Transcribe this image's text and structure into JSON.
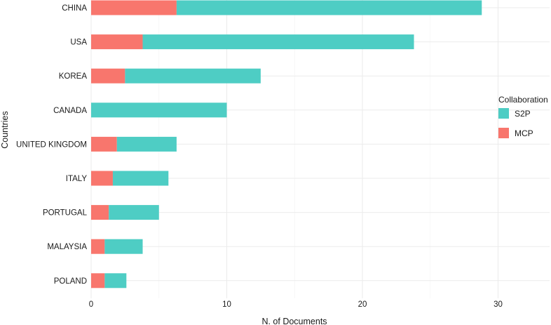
{
  "chart_data": {
    "type": "bar",
    "orientation": "horizontal",
    "stacked": true,
    "categories": [
      "CHINA",
      "USA",
      "KOREA",
      "CANADA",
      "UNITED KINGDOM",
      "ITALY",
      "PORTUGAL",
      "MALAYSIA",
      "POLAND"
    ],
    "series": [
      {
        "name": "MCP",
        "color": "#F8766D",
        "values": [
          6.3,
          3.8,
          2.5,
          0,
          1.9,
          1.6,
          1.3,
          1.0,
          1.0
        ]
      },
      {
        "name": "S2P",
        "color": "#4ECDC4",
        "values": [
          22.5,
          20.0,
          10.0,
          10.0,
          4.4,
          4.1,
          3.7,
          2.8,
          1.6
        ]
      }
    ],
    "xlabel": "N. of Documents",
    "ylabel": "Countries",
    "xlim": [
      0,
      33.8
    ],
    "xticks": [
      0,
      10,
      20,
      30
    ],
    "grid": true,
    "legend": {
      "title": "Collaboration",
      "position": "right",
      "entries": [
        {
          "label": "S2P",
          "color": "#4ECDC4"
        },
        {
          "label": "MCP",
          "color": "#F8766D"
        }
      ]
    }
  }
}
